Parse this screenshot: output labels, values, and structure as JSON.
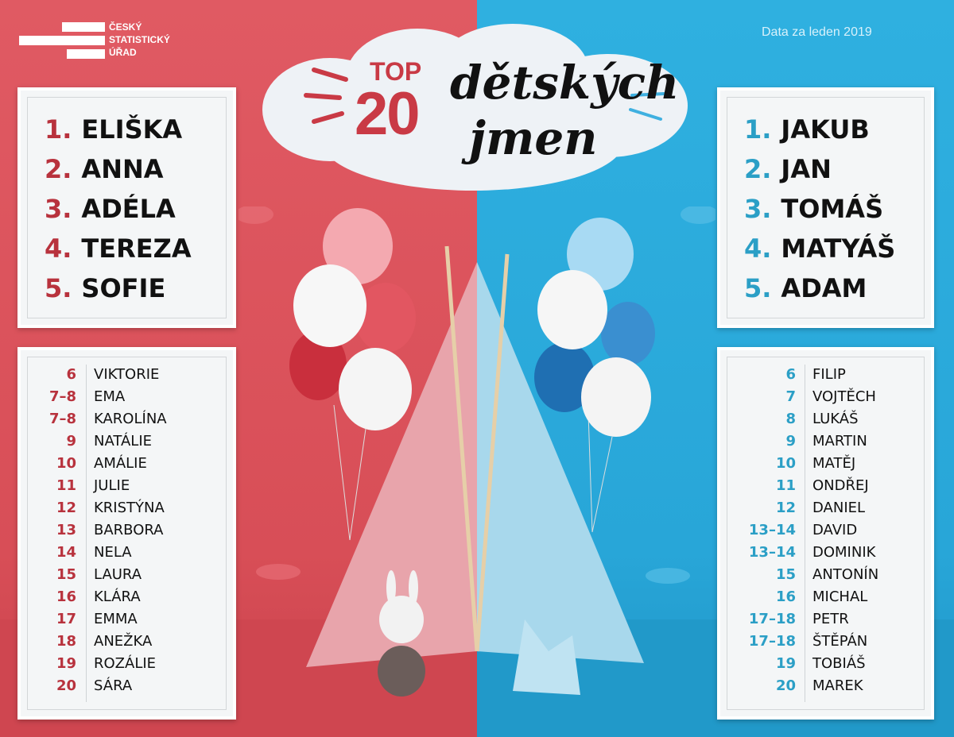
{
  "logo": {
    "lines": [
      "ČESKÝ",
      "STATISTICKÝ",
      "ÚŘAD"
    ]
  },
  "date_note": "Data za leden 2019",
  "title": {
    "top": "TOP",
    "number": "20",
    "script_line1": "dětských",
    "script_line2": "jmen"
  },
  "colors": {
    "girls_bg": "#d9535c",
    "boys_bg": "#2aa7d8",
    "girls_rank": "#b8323d",
    "boys_rank": "#2b9fc6"
  },
  "girls": {
    "top5": [
      {
        "rank": "1.",
        "name": "ELIŠKA"
      },
      {
        "rank": "2.",
        "name": "ANNA"
      },
      {
        "rank": "3.",
        "name": "ADÉLA"
      },
      {
        "rank": "4.",
        "name": "TEREZA"
      },
      {
        "rank": "5.",
        "name": "SOFIE"
      }
    ],
    "rest": [
      {
        "rank": "6",
        "name": "VIKTORIE"
      },
      {
        "rank": "7–8",
        "name": "EMA"
      },
      {
        "rank": "7–8",
        "name": "KAROLÍNA"
      },
      {
        "rank": "9",
        "name": "NATÁLIE"
      },
      {
        "rank": "10",
        "name": "AMÁLIE"
      },
      {
        "rank": "11",
        "name": "JULIE"
      },
      {
        "rank": "12",
        "name": "KRISTÝNA"
      },
      {
        "rank": "13",
        "name": "BARBORA"
      },
      {
        "rank": "14",
        "name": "NELA"
      },
      {
        "rank": "15",
        "name": "LAURA"
      },
      {
        "rank": "16",
        "name": "KLÁRA"
      },
      {
        "rank": "17",
        "name": "EMMA"
      },
      {
        "rank": "18",
        "name": "ANEŽKA"
      },
      {
        "rank": "19",
        "name": "ROZÁLIE"
      },
      {
        "rank": "20",
        "name": "SÁRA"
      }
    ]
  },
  "boys": {
    "top5": [
      {
        "rank": "1.",
        "name": "JAKUB"
      },
      {
        "rank": "2.",
        "name": "JAN"
      },
      {
        "rank": "3.",
        "name": "TOMÁŠ"
      },
      {
        "rank": "4.",
        "name": "MATYÁŠ"
      },
      {
        "rank": "5.",
        "name": "ADAM"
      }
    ],
    "rest": [
      {
        "rank": "6",
        "name": "FILIP"
      },
      {
        "rank": "7",
        "name": "VOJTĚCH"
      },
      {
        "rank": "8",
        "name": "LUKÁŠ"
      },
      {
        "rank": "9",
        "name": "MARTIN"
      },
      {
        "rank": "10",
        "name": "MATĚJ"
      },
      {
        "rank": "11",
        "name": "ONDŘEJ"
      },
      {
        "rank": "12",
        "name": "DANIEL"
      },
      {
        "rank": "13–14",
        "name": "DAVID"
      },
      {
        "rank": "13–14",
        "name": "DOMINIK"
      },
      {
        "rank": "15",
        "name": "ANTONÍN"
      },
      {
        "rank": "16",
        "name": "MICHAL"
      },
      {
        "rank": "17–18",
        "name": "PETR"
      },
      {
        "rank": "17–18",
        "name": "ŠTĚPÁN"
      },
      {
        "rank": "19",
        "name": "TOBIÁŠ"
      },
      {
        "rank": "20",
        "name": "MAREK"
      }
    ]
  }
}
